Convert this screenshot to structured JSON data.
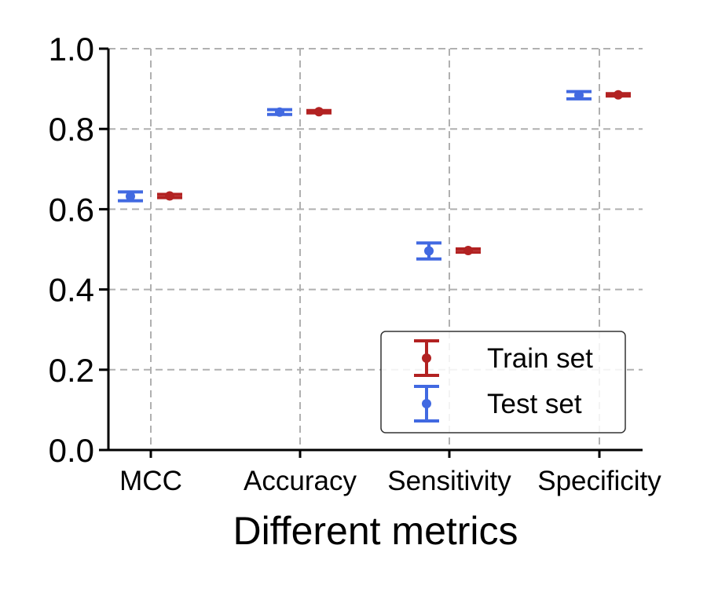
{
  "chart_data": {
    "type": "scatter",
    "title": "",
    "xlabel": "Different metrics",
    "ylabel": "",
    "categories": [
      "MCC",
      "Accuracy",
      "Sensitivity",
      "Specificity"
    ],
    "ylim": [
      0.0,
      1.0
    ],
    "yticks": [
      "0.0",
      "0.2",
      "0.4",
      "0.6",
      "0.8",
      "1.0"
    ],
    "grid": true,
    "legend_position": "lower-right",
    "series": [
      {
        "name": "Train set",
        "color": "#b22222",
        "values": [
          0.633,
          0.843,
          0.497,
          0.885
        ],
        "errors": [
          0.004,
          0.003,
          0.004,
          0.003
        ]
      },
      {
        "name": "Test set",
        "color": "#4169e1",
        "values": [
          0.632,
          0.842,
          0.496,
          0.884
        ],
        "errors": [
          0.011,
          0.006,
          0.02,
          0.009
        ]
      }
    ]
  }
}
